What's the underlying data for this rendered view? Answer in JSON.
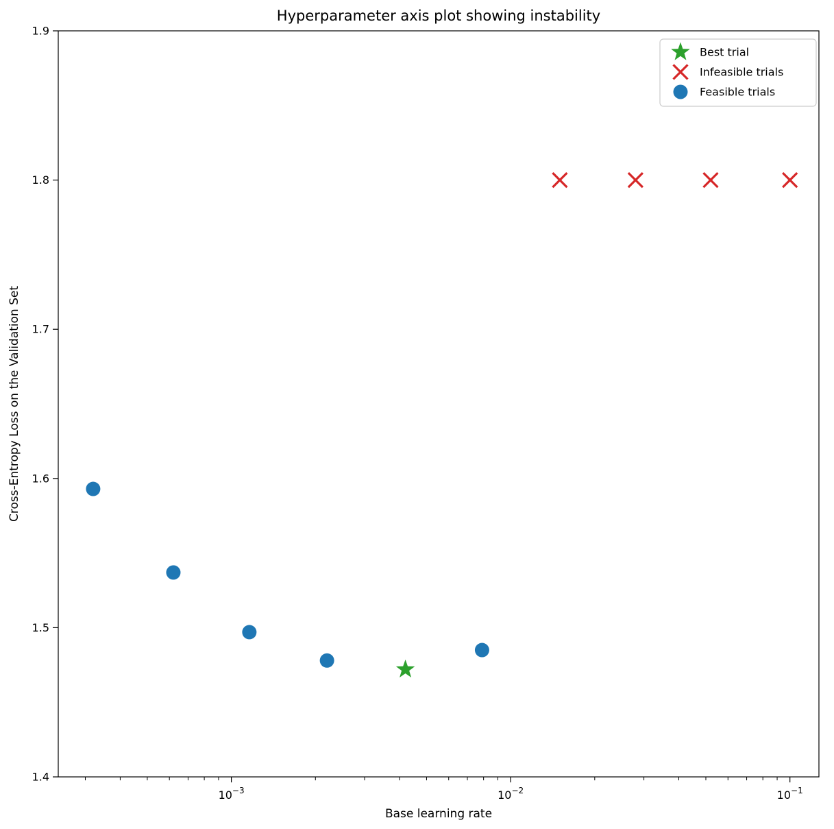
{
  "chart_data": {
    "type": "scatter",
    "title": "Hyperparameter axis plot showing instability",
    "xlabel": "Base learning rate",
    "ylabel": "Cross-Entropy Loss on the Validation Set",
    "xscale": "log",
    "yscale": "linear",
    "xlim": [
      0.00024,
      0.127
    ],
    "ylim": [
      1.4,
      1.9
    ],
    "yticks": [
      1.4,
      1.5,
      1.6,
      1.7,
      1.8,
      1.9
    ],
    "xtick_exponents": [
      -3,
      -2,
      -1
    ],
    "grid": false,
    "legend_position": "upper right",
    "series": [
      {
        "name": "Best trial",
        "marker": "star",
        "color": "#2ca02c",
        "points": [
          [
            0.0042,
            1.472
          ]
        ]
      },
      {
        "name": "Infeasible trials",
        "marker": "x",
        "color": "#d62728",
        "points": [
          [
            0.015,
            1.8
          ],
          [
            0.028,
            1.8
          ],
          [
            0.052,
            1.8
          ],
          [
            0.1,
            1.8
          ]
        ]
      },
      {
        "name": "Feasible trials",
        "marker": "circle",
        "color": "#1f77b4",
        "points": [
          [
            0.00032,
            1.593
          ],
          [
            0.00062,
            1.537
          ],
          [
            0.00116,
            1.497
          ],
          [
            0.0022,
            1.478
          ],
          [
            0.0079,
            1.485
          ]
        ]
      }
    ]
  }
}
